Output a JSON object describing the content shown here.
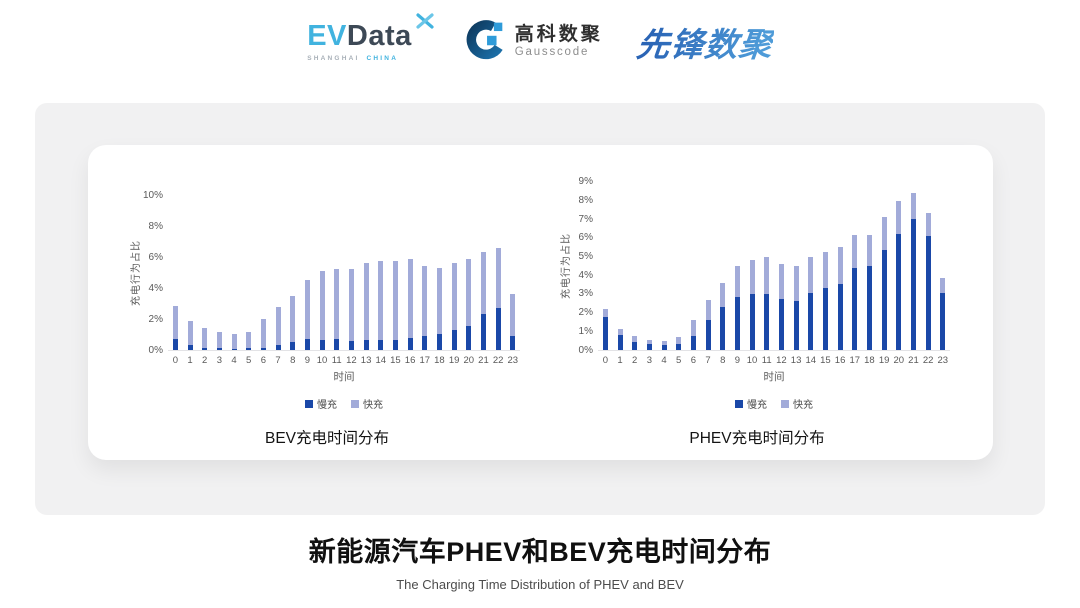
{
  "header": {
    "evdata": {
      "ev": "EV",
      "data": "Data",
      "sub_left": "SHANGHAI",
      "sub_right": "CHINA"
    },
    "gausscode": {
      "name_cn": "高科数聚",
      "name_en": "Gausscode"
    },
    "pioneer": {
      "name": "先锋数聚"
    }
  },
  "footer": {
    "title": "新能源汽车PHEV和BEV充电时间分布",
    "subtitle": "The Charging Time Distribution of PHEV and BEV"
  },
  "colors": {
    "slow_charge": "#1A48A8",
    "fast_charge": "#A2ABD9",
    "panel_background": "#F1F1F2",
    "axis_text": "#595959"
  },
  "chart_data": [
    {
      "type": "bar",
      "stacked": true,
      "title": "BEV充电时间分布",
      "xlabel": "时间",
      "ylabel": "充电行为占比",
      "ylim": [
        0,
        10
      ],
      "ytick_step": 2,
      "ytick_suffix": "%",
      "grid": false,
      "legend_position": "bottom",
      "categories": [
        0,
        1,
        2,
        3,
        4,
        5,
        6,
        7,
        8,
        9,
        10,
        11,
        12,
        13,
        14,
        15,
        16,
        17,
        18,
        19,
        20,
        21,
        22,
        23
      ],
      "series": [
        {
          "name": "慢充",
          "color": "#1A48A8",
          "values": [
            0.7,
            0.3,
            0.15,
            0.1,
            0.08,
            0.1,
            0.15,
            0.35,
            0.5,
            0.7,
            0.65,
            0.7,
            0.6,
            0.65,
            0.65,
            0.65,
            0.8,
            0.9,
            1.05,
            1.3,
            1.55,
            2.3,
            2.7,
            0.9
          ]
        },
        {
          "name": "快充",
          "color": "#A2ABD9",
          "values": [
            2.15,
            1.55,
            1.3,
            1.05,
            0.97,
            1.05,
            1.85,
            2.45,
            3.0,
            3.85,
            4.45,
            4.5,
            4.6,
            4.95,
            5.1,
            5.1,
            5.05,
            4.55,
            4.25,
            4.3,
            4.35,
            4.05,
            3.85,
            2.7
          ]
        }
      ]
    },
    {
      "type": "bar",
      "stacked": true,
      "title": "PHEV充电时间分布",
      "xlabel": "时间",
      "ylabel": "充电行为占比",
      "ylim": [
        0,
        9
      ],
      "ytick_step": 1,
      "ytick_suffix": "%",
      "grid": false,
      "legend_position": "bottom",
      "categories": [
        0,
        1,
        2,
        3,
        4,
        5,
        6,
        7,
        8,
        9,
        10,
        11,
        12,
        13,
        14,
        15,
        16,
        17,
        18,
        19,
        20,
        21,
        22,
        23
      ],
      "series": [
        {
          "name": "慢充",
          "color": "#1A48A8",
          "values": [
            1.75,
            0.8,
            0.45,
            0.3,
            0.25,
            0.3,
            0.75,
            1.6,
            2.3,
            2.85,
            3.0,
            3.0,
            2.75,
            2.6,
            3.05,
            3.3,
            3.55,
            4.4,
            4.5,
            5.35,
            6.2,
            7.0,
            6.1,
            3.05
          ]
        },
        {
          "name": "快充",
          "color": "#A2ABD9",
          "values": [
            0.45,
            0.35,
            0.3,
            0.25,
            0.25,
            0.4,
            0.85,
            1.1,
            1.3,
            1.65,
            1.8,
            2.0,
            1.85,
            1.9,
            1.95,
            1.95,
            1.95,
            1.75,
            1.65,
            1.75,
            1.75,
            1.4,
            1.25,
            0.8
          ]
        }
      ]
    }
  ]
}
